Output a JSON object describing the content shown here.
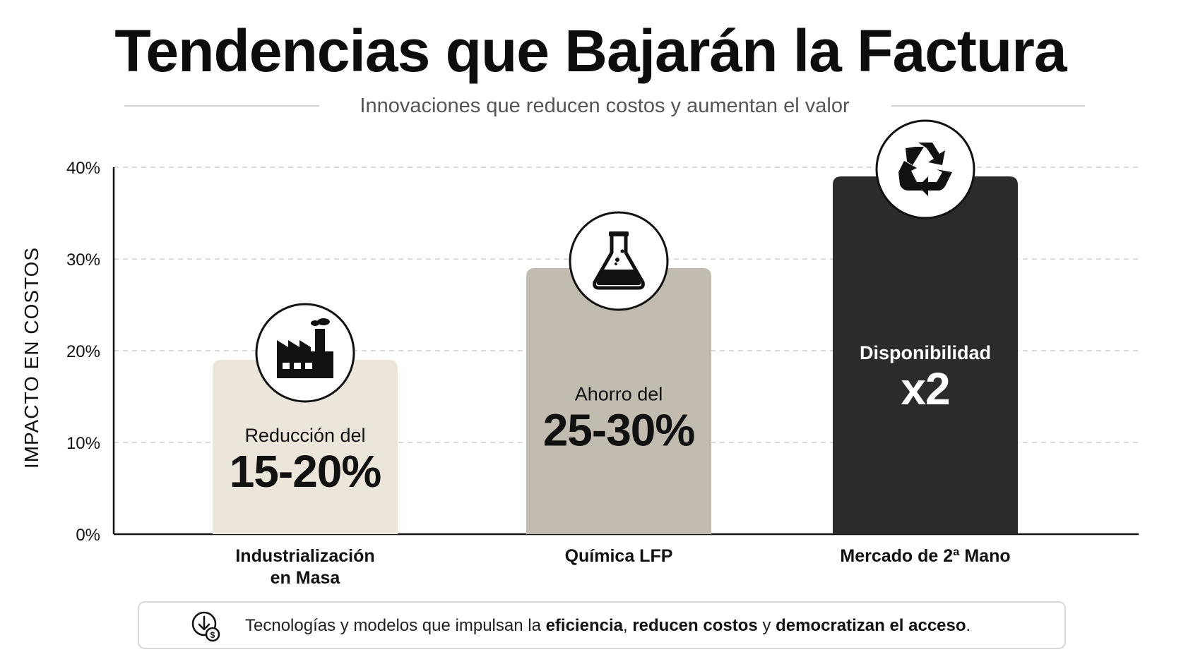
{
  "header": {
    "title": "Tendencias que Bajarán la Factura",
    "subtitle": "Innovaciones que reducen costos y aumentan el valor"
  },
  "chart_data": {
    "type": "bar",
    "ylabel": "IMPACTO EN COSTOS",
    "xlabel": "",
    "ylim": [
      0,
      40
    ],
    "yticks": [
      "0%",
      "10%",
      "20%",
      "30%",
      "40%"
    ],
    "ytick_values": [
      0,
      10,
      20,
      30,
      40
    ],
    "grid": true,
    "categories": [
      "Industrialización en Masa",
      "Química LFP",
      "Mercado de 2ª Mano"
    ],
    "category_lines": [
      [
        "Industrialización",
        "en Masa"
      ],
      [
        "Química LFP"
      ],
      [
        "Mercado de 2ª Mano"
      ]
    ],
    "values": [
      19,
      29,
      39
    ],
    "bar_colors": [
      "#ebe5da",
      "#c2bbaf",
      "#2b2b2b"
    ],
    "icons": [
      "factory-icon",
      "flask-icon",
      "recycle-icon"
    ],
    "bar_labels": [
      {
        "small": "Reducción del",
        "big": "15-20%",
        "color": "#111111"
      },
      {
        "small": "Ahorro del",
        "big": "25-30%",
        "color": "#111111"
      },
      {
        "small": "Disponibilidad",
        "big": "x2",
        "color": "#ffffff"
      }
    ]
  },
  "footer": {
    "icon": "price-down-icon",
    "text_prefix": "Tecnologías y modelos que impulsan la ",
    "bold1": "eficiencia",
    "sep": ", ",
    "bold2": "reducen costos",
    "mid": " y ",
    "bold3": "democratizan el acceso",
    "suffix": "."
  }
}
